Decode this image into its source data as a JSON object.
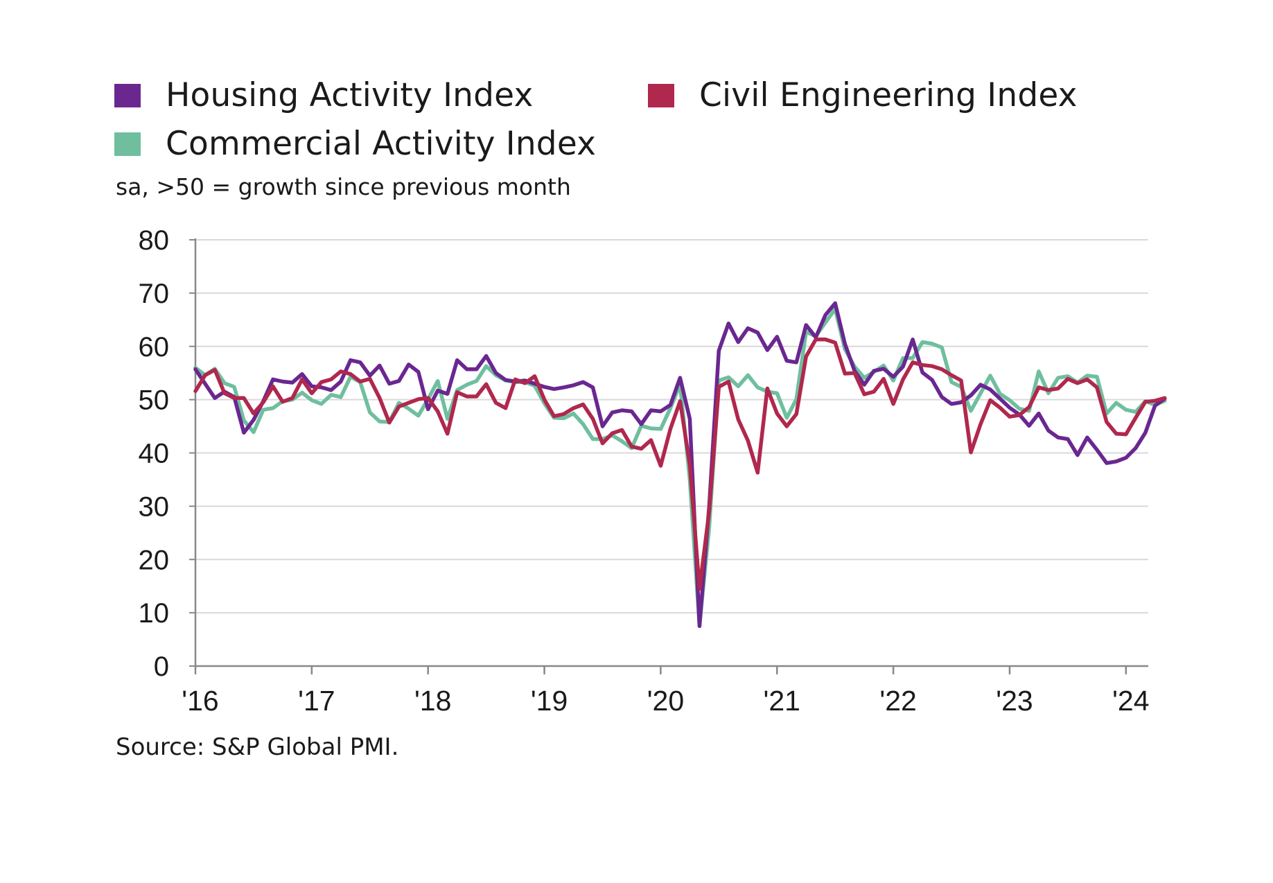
{
  "legend": {
    "housing": "Housing Activity Index",
    "civil": "Civil Engineering Index",
    "commercial": "Commercial Activity Index"
  },
  "subtitle": "sa, >50 = growth since previous month",
  "source": "Source: S&P Global PMI.",
  "colors": {
    "housing": "#6a2790",
    "civil": "#b0284d",
    "commercial": "#6fbf9f",
    "grid": "#d9d9d9",
    "axis": "#888888"
  },
  "chart_data": {
    "type": "line",
    "title": "",
    "xlabel": "",
    "ylabel": "",
    "ylim": [
      0,
      80
    ],
    "yticks": [
      "0",
      "10",
      "20",
      "30",
      "40",
      "50",
      "60",
      "70",
      "80"
    ],
    "xticks": [
      "'16",
      "'17",
      "'18",
      "'19",
      "'20",
      "'21",
      "'22",
      "'23",
      "'24"
    ],
    "grid": "horizontal",
    "legend_position": "top",
    "x_start": "2016-01",
    "x_end": "2024-03",
    "series": [
      {
        "name": "Housing Activity Index",
        "color": "#6a2790",
        "values": [
          55.7,
          53.0,
          50.3,
          51.5,
          50.5,
          43.8,
          46.2,
          49.7,
          53.8,
          53.4,
          53.2,
          54.8,
          52.5,
          52.3,
          51.8,
          53.4,
          57.4,
          57.0,
          54.5,
          56.4,
          53.0,
          53.5,
          56.6,
          55.2,
          48.2,
          51.7,
          51.1,
          57.4,
          55.7,
          55.7,
          58.2,
          55.0,
          53.7,
          53.4,
          53.6,
          53.0,
          52.4,
          52.0,
          52.3,
          52.7,
          53.3,
          52.3,
          45.0,
          47.6,
          48.0,
          47.8,
          45.4,
          48.0,
          47.8,
          49.0,
          54.1,
          46.4,
          7.5,
          30.0,
          59.2,
          64.3,
          60.8,
          63.4,
          62.6,
          59.3,
          61.8,
          57.3,
          57.0,
          64.0,
          61.7,
          65.9,
          68.1,
          60.5,
          55.4,
          52.8,
          55.4,
          55.8,
          54.3,
          56.2,
          61.3,
          55.1,
          53.7,
          50.5,
          49.2,
          49.5,
          50.8,
          52.8,
          51.9,
          50.2,
          48.5,
          47.2,
          45.1,
          47.4,
          44.2,
          42.9,
          42.6,
          39.6,
          42.9,
          40.6,
          38.1,
          38.4,
          39.1,
          40.9,
          43.8,
          48.9,
          50.2
        ]
      },
      {
        "name": "Civil Engineering Index",
        "color": "#b0284d",
        "values": [
          51.6,
          54.6,
          55.6,
          51.2,
          50.3,
          50.3,
          47.4,
          49.5,
          52.5,
          49.6,
          50.3,
          53.8,
          51.2,
          53.3,
          53.8,
          55.3,
          54.8,
          53.4,
          53.9,
          50.3,
          45.7,
          48.7,
          49.4,
          50.1,
          50.3,
          47.8,
          43.6,
          51.4,
          50.6,
          50.6,
          52.9,
          49.4,
          48.4,
          53.8,
          53.1,
          54.4,
          50.0,
          46.9,
          47.3,
          48.4,
          49.1,
          46.4,
          41.8,
          43.7,
          44.3,
          41.2,
          40.8,
          42.4,
          37.6,
          44.5,
          49.7,
          37.8,
          14.5,
          29.0,
          52.4,
          53.4,
          46.3,
          42.3,
          36.3,
          52.1,
          47.4,
          45.0,
          47.3,
          58.1,
          61.3,
          61.3,
          60.7,
          54.9,
          55.0,
          51.0,
          51.5,
          53.9,
          49.2,
          53.8,
          57.0,
          56.5,
          56.3,
          55.7,
          54.6,
          53.6,
          40.1,
          45.4,
          49.9,
          48.5,
          46.8,
          47.1,
          48.6,
          52.3,
          51.8,
          52.1,
          53.9,
          53.1,
          53.8,
          52.3,
          45.8,
          43.6,
          43.5,
          46.6,
          49.6,
          49.8,
          50.3
        ]
      },
      {
        "name": "Commercial Activity Index",
        "color": "#6fbf9f",
        "values": [
          56.0,
          54.6,
          55.8,
          53.1,
          52.4,
          46.1,
          43.9,
          48.1,
          48.4,
          49.7,
          50.0,
          51.3,
          49.9,
          49.2,
          50.9,
          50.5,
          54.3,
          53.3,
          47.6,
          45.9,
          45.8,
          49.4,
          48.3,
          47.0,
          50.1,
          53.5,
          46.4,
          51.8,
          52.8,
          53.5,
          56.3,
          54.6,
          53.6,
          53.3,
          53.3,
          52.6,
          49.3,
          46.6,
          46.5,
          47.4,
          45.4,
          42.6,
          42.6,
          43.3,
          42.2,
          40.9,
          45.1,
          44.6,
          44.5,
          48.4,
          52.9,
          35.0,
          7.6,
          26.0,
          53.6,
          54.2,
          52.5,
          54.6,
          52.3,
          51.5,
          51.2,
          46.6,
          50.1,
          62.7,
          61.9,
          64.5,
          67.0,
          59.5,
          56.2,
          54.1,
          55.2,
          56.4,
          53.6,
          57.8,
          57.8,
          60.8,
          60.5,
          59.8,
          53.3,
          52.4,
          47.9,
          51.2,
          54.5,
          51.1,
          49.9,
          48.3,
          47.9,
          55.3,
          51.2,
          54.1,
          54.4,
          53.2,
          54.5,
          54.3,
          47.4,
          49.4,
          48.1,
          47.7,
          49.7,
          49.0,
          49.8
        ]
      }
    ]
  }
}
